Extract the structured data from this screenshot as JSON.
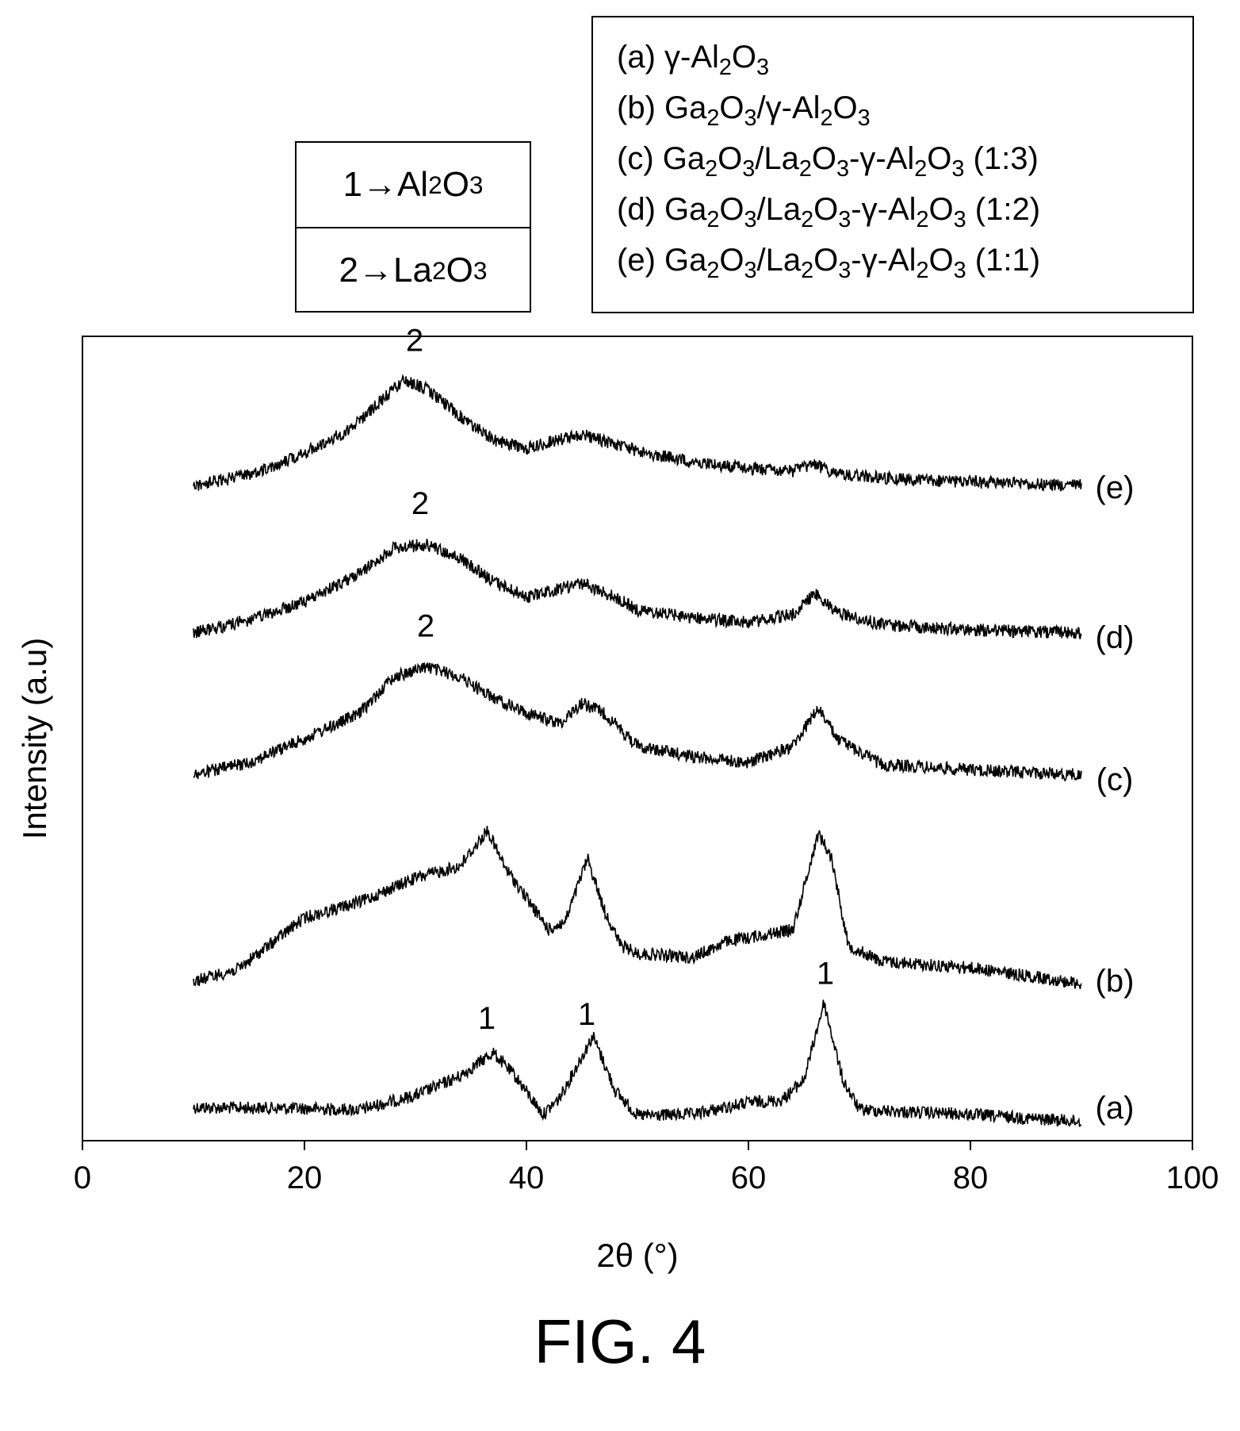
{
  "figure": {
    "caption": "FIG. 4"
  },
  "peak_legend": [
    {
      "number": "1",
      "arrow": "→",
      "phase_parts": [
        [
          "Al",
          ""
        ],
        [
          "2",
          "sub"
        ],
        [
          "O",
          ""
        ],
        [
          "3",
          "sub"
        ]
      ]
    },
    {
      "number": "2",
      "arrow": "→",
      "phase_parts": [
        [
          "La",
          ""
        ],
        [
          "2",
          "sub"
        ],
        [
          "O",
          ""
        ],
        [
          "3",
          "sub"
        ]
      ]
    }
  ],
  "sample_legend": [
    {
      "label": "(a)",
      "parts": [
        [
          "γ-Al",
          ""
        ],
        [
          "2",
          "sub"
        ],
        [
          "O",
          ""
        ],
        [
          "3",
          "sub"
        ]
      ]
    },
    {
      "label": "(b)",
      "parts": [
        [
          "Ga",
          ""
        ],
        [
          "2",
          "sub"
        ],
        [
          "O",
          ""
        ],
        [
          "3",
          "sub"
        ],
        [
          "/γ-Al",
          ""
        ],
        [
          "2",
          "sub"
        ],
        [
          "O",
          ""
        ],
        [
          "3",
          "sub"
        ]
      ]
    },
    {
      "label": "(c)",
      "parts": [
        [
          "Ga",
          ""
        ],
        [
          "2",
          "sub"
        ],
        [
          "O",
          ""
        ],
        [
          "3",
          "sub"
        ],
        [
          "/La",
          ""
        ],
        [
          "2",
          "sub"
        ],
        [
          "O",
          ""
        ],
        [
          "3",
          "sub"
        ],
        [
          "-γ-Al",
          ""
        ],
        [
          "2",
          "sub"
        ],
        [
          "O",
          ""
        ],
        [
          "3",
          "sub"
        ],
        [
          " (1:3)",
          ""
        ]
      ]
    },
    {
      "label": "(d)",
      "parts": [
        [
          "Ga",
          ""
        ],
        [
          "2",
          "sub"
        ],
        [
          "O",
          ""
        ],
        [
          "3",
          "sub"
        ],
        [
          "/La",
          ""
        ],
        [
          "2",
          "sub"
        ],
        [
          "O",
          ""
        ],
        [
          "3",
          "sub"
        ],
        [
          "-γ-Al",
          ""
        ],
        [
          "2",
          "sub"
        ],
        [
          "O",
          ""
        ],
        [
          "3",
          "sub"
        ],
        [
          " (1:2)",
          ""
        ]
      ]
    },
    {
      "label": "(e)",
      "parts": [
        [
          "Ga",
          ""
        ],
        [
          "2",
          "sub"
        ],
        [
          "O",
          ""
        ],
        [
          "3",
          "sub"
        ],
        [
          "/La",
          ""
        ],
        [
          "2",
          "sub"
        ],
        [
          "O",
          ""
        ],
        [
          "3",
          "sub"
        ],
        [
          "-γ-Al",
          ""
        ],
        [
          "2",
          "sub"
        ],
        [
          "O",
          ""
        ],
        [
          "3",
          "sub"
        ],
        [
          " (1:1)",
          ""
        ]
      ]
    }
  ],
  "chart_data": {
    "type": "line",
    "xlabel": "2θ (°)",
    "ylabel": "Intensity (a.u)",
    "xlim": [
      0,
      100
    ],
    "xticks": [
      0,
      20,
      40,
      60,
      80,
      100
    ],
    "y_axis_ticks": false,
    "grid": false,
    "x_range": [
      10,
      90
    ],
    "series": [
      {
        "name": "(a)",
        "offset": 0,
        "points": [
          [
            10,
            0.12
          ],
          [
            20,
            0.11
          ],
          [
            25,
            0.1
          ],
          [
            30,
            0.22
          ],
          [
            34,
            0.38
          ],
          [
            37,
            0.58
          ],
          [
            39,
            0.38
          ],
          [
            41.5,
            0.06
          ],
          [
            43,
            0.2
          ],
          [
            46,
            0.72
          ],
          [
            48,
            0.26
          ],
          [
            50,
            0.05
          ],
          [
            55,
            0.06
          ],
          [
            60,
            0.16
          ],
          [
            63,
            0.18
          ],
          [
            65,
            0.35
          ],
          [
            66.8,
            1.0
          ],
          [
            68.5,
            0.35
          ],
          [
            70,
            0.1
          ],
          [
            80,
            0.06
          ],
          [
            90,
            0.0
          ]
        ],
        "peak_labels": [
          {
            "x": 36,
            "text": "1"
          },
          {
            "x": 45,
            "text": "1"
          },
          {
            "x": 66.5,
            "text": "1"
          }
        ]
      },
      {
        "name": "(b)",
        "offset": 0,
        "points": [
          [
            10,
            0.05
          ],
          [
            14,
            0.2
          ],
          [
            20,
            0.85
          ],
          [
            25,
            1.05
          ],
          [
            30,
            1.35
          ],
          [
            34,
            1.5
          ],
          [
            36.5,
            1.95
          ],
          [
            38,
            1.5
          ],
          [
            40,
            1.1
          ],
          [
            42,
            0.7
          ],
          [
            43.5,
            0.8
          ],
          [
            45.5,
            1.6
          ],
          [
            47,
            0.95
          ],
          [
            48.5,
            0.5
          ],
          [
            50,
            0.4
          ],
          [
            55,
            0.35
          ],
          [
            58,
            0.55
          ],
          [
            62,
            0.65
          ],
          [
            64,
            0.7
          ],
          [
            66.3,
            1.92
          ],
          [
            67.5,
            1.6
          ],
          [
            69,
            0.5
          ],
          [
            72,
            0.3
          ],
          [
            80,
            0.22
          ],
          [
            85,
            0.12
          ],
          [
            90,
            0.02
          ]
        ],
        "peak_labels": []
      },
      {
        "name": "(c)",
        "offset": 0,
        "points": [
          [
            10,
            0.0
          ],
          [
            15,
            0.12
          ],
          [
            20,
            0.35
          ],
          [
            25,
            0.6
          ],
          [
            28,
            0.95
          ],
          [
            31,
            1.05
          ],
          [
            34,
            0.95
          ],
          [
            37,
            0.75
          ],
          [
            40,
            0.6
          ],
          [
            43,
            0.5
          ],
          [
            45,
            0.7
          ],
          [
            47,
            0.6
          ],
          [
            50,
            0.28
          ],
          [
            55,
            0.18
          ],
          [
            60,
            0.12
          ],
          [
            64,
            0.28
          ],
          [
            66.3,
            0.65
          ],
          [
            68,
            0.35
          ],
          [
            72,
            0.1
          ],
          [
            80,
            0.05
          ],
          [
            90,
            0.0
          ]
        ],
        "peak_labels": [
          {
            "x": 30.5,
            "text": "2"
          }
        ]
      },
      {
        "name": "(d)",
        "offset": 0,
        "points": [
          [
            10,
            0.0
          ],
          [
            15,
            0.12
          ],
          [
            20,
            0.3
          ],
          [
            25,
            0.58
          ],
          [
            28,
            0.82
          ],
          [
            31,
            0.86
          ],
          [
            34,
            0.72
          ],
          [
            37,
            0.5
          ],
          [
            40,
            0.35
          ],
          [
            45,
            0.48
          ],
          [
            48,
            0.35
          ],
          [
            50,
            0.22
          ],
          [
            55,
            0.15
          ],
          [
            60,
            0.1
          ],
          [
            64,
            0.18
          ],
          [
            66,
            0.38
          ],
          [
            68,
            0.2
          ],
          [
            72,
            0.08
          ],
          [
            80,
            0.03
          ],
          [
            90,
            0.0
          ]
        ],
        "peak_labels": [
          {
            "x": 30,
            "text": "2"
          }
        ]
      },
      {
        "name": "(e)",
        "offset": 0,
        "points": [
          [
            10,
            0.0
          ],
          [
            15,
            0.1
          ],
          [
            20,
            0.3
          ],
          [
            24,
            0.52
          ],
          [
            27,
            0.8
          ],
          [
            29,
            0.98
          ],
          [
            31,
            0.9
          ],
          [
            34,
            0.65
          ],
          [
            37,
            0.42
          ],
          [
            40,
            0.35
          ],
          [
            45,
            0.48
          ],
          [
            50,
            0.32
          ],
          [
            55,
            0.22
          ],
          [
            60,
            0.16
          ],
          [
            64,
            0.13
          ],
          [
            66,
            0.2
          ],
          [
            68,
            0.1
          ],
          [
            75,
            0.05
          ],
          [
            90,
            0.0
          ]
        ],
        "peak_labels": [
          {
            "x": 29.5,
            "text": "2"
          }
        ]
      }
    ]
  }
}
